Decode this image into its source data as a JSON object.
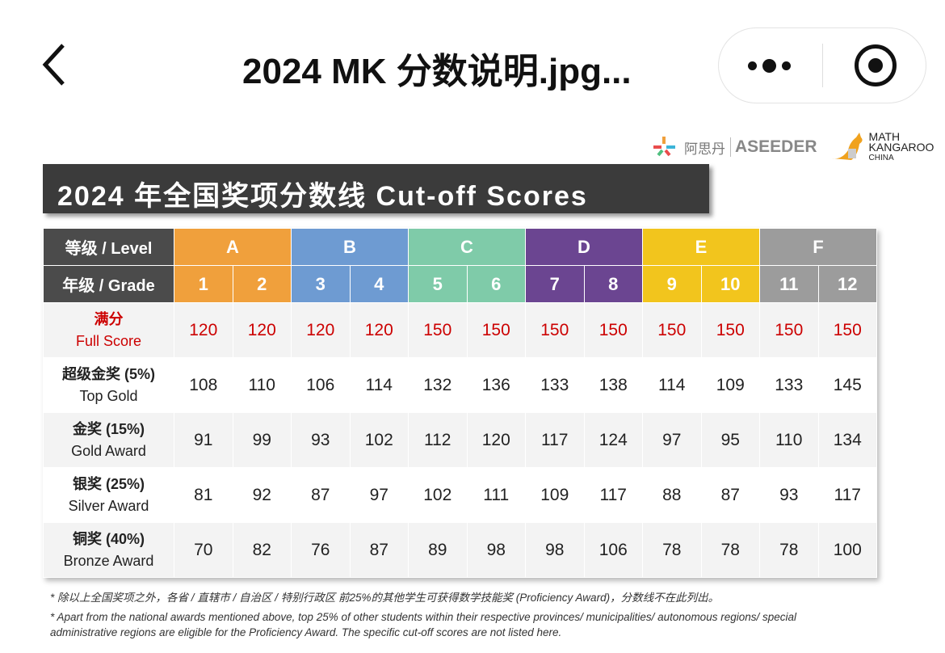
{
  "topbar": {
    "title": "2024 MK 分数说明.jpg...",
    "back_icon": "chevron-left-icon",
    "more_icon": "more-dots-icon",
    "target_icon": "record-target-icon"
  },
  "logos": {
    "aseeder_cn": "阿思丹",
    "aseeder": "ASEEDER",
    "mk_line1": "MATH",
    "mk_line2": "KANGAROO",
    "mk_line3": "CHINA"
  },
  "banner": "2024 年全国奖项分数线 Cut-off Scores",
  "table": {
    "level_label": "等级 / Level",
    "grade_label": "年级 / Grade",
    "levels": [
      {
        "name": "A",
        "color": "#f0a03c"
      },
      {
        "name": "B",
        "color": "#6e9bd2"
      },
      {
        "name": "C",
        "color": "#7fcba9"
      },
      {
        "name": "D",
        "color": "#6b4591"
      },
      {
        "name": "E",
        "color": "#f2c51d"
      },
      {
        "name": "F",
        "color": "#9c9c9c"
      }
    ],
    "grades": [
      "1",
      "2",
      "3",
      "4",
      "5",
      "6",
      "7",
      "8",
      "9",
      "10",
      "11",
      "12"
    ],
    "rows": [
      {
        "cn": "满分",
        "en": "Full Score",
        "values": [
          "120",
          "120",
          "120",
          "120",
          "150",
          "150",
          "150",
          "150",
          "150",
          "150",
          "150",
          "150"
        ]
      },
      {
        "cn": "超级金奖 (5%)",
        "en": "Top Gold",
        "values": [
          "108",
          "110",
          "106",
          "114",
          "132",
          "136",
          "133",
          "138",
          "114",
          "109",
          "133",
          "145"
        ]
      },
      {
        "cn": "金奖 (15%)",
        "en": "Gold Award",
        "values": [
          "91",
          "99",
          "93",
          "102",
          "112",
          "120",
          "117",
          "124",
          "97",
          "95",
          "110",
          "134"
        ]
      },
      {
        "cn": "银奖 (25%)",
        "en": "Silver Award",
        "values": [
          "81",
          "92",
          "87",
          "97",
          "102",
          "111",
          "109",
          "117",
          "88",
          "87",
          "93",
          "117"
        ]
      },
      {
        "cn": "铜奖 (40%)",
        "en": "Bronze Award",
        "values": [
          "70",
          "82",
          "76",
          "87",
          "89",
          "98",
          "98",
          "106",
          "78",
          "78",
          "78",
          "100"
        ]
      }
    ]
  },
  "notes": [
    "* 除以上全国奖项之外，各省 / 直辖市 / 自治区 / 特别行政区 前25%的其他学生可获得数学技能奖 (Proficiency Award)，分数线不在此列出。",
    "* Apart from the national awards mentioned above, top 25% of other students within their respective provinces/ municipalities/ autonomous regions/ special administrative regions are eligible for the Proficiency Award. The specific cut-off scores are not listed here."
  ]
}
